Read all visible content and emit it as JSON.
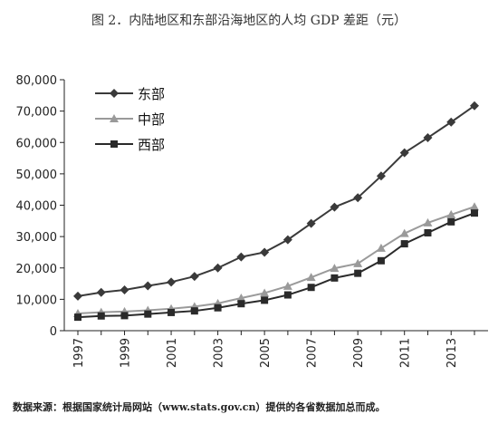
{
  "page": {
    "title": "图 2．内陆地区和东部沿海地区的人均 GDP 差距（元）",
    "source_note": "数据来源：根据国家统计局网站（www.stats.gov.cn）提供的各省数据加总而成。"
  },
  "chart_data": {
    "type": "line",
    "title": "图 2．内陆地区和东部沿海地区的人均 GDP 差距（元）",
    "xlabel": "",
    "ylabel": "",
    "x": [
      1997,
      1998,
      1999,
      2000,
      2001,
      2002,
      2003,
      2004,
      2005,
      2006,
      2007,
      2008,
      2009,
      2010,
      2011,
      2012,
      2013,
      2014
    ],
    "x_tick_labels": [
      "1997",
      "1999",
      "2001",
      "2003",
      "2005",
      "2007",
      "2009",
      "2011",
      "2013"
    ],
    "x_range": [
      1997,
      2014
    ],
    "ylim": [
      0,
      80000
    ],
    "y_tick_labels": [
      "0",
      "10,000",
      "20,000",
      "30,000",
      "40,000",
      "50,000",
      "60,000",
      "70,000",
      "80,000"
    ],
    "grid": false,
    "legend_position": "top-left",
    "series": [
      {
        "name": "东部",
        "marker": "diamond",
        "color": "#3a3a3a",
        "values": [
          11000,
          12200,
          13000,
          14300,
          15500,
          17300,
          20000,
          23500,
          25000,
          29000,
          34200,
          39400,
          42400,
          49300,
          56700,
          61500,
          66500,
          71700
        ]
      },
      {
        "name": "中部",
        "marker": "triangle",
        "color": "#9a9a9a",
        "values": [
          5500,
          5900,
          6100,
          6500,
          7000,
          7700,
          8700,
          10400,
          12000,
          14200,
          17000,
          19900,
          21400,
          26300,
          31000,
          34400,
          37000,
          39500
        ]
      },
      {
        "name": "西部",
        "marker": "square",
        "color": "#2a2a2a",
        "values": [
          4300,
          4700,
          4800,
          5300,
          5800,
          6300,
          7300,
          8600,
          9700,
          11400,
          13800,
          16800,
          18300,
          22300,
          27700,
          31200,
          34700,
          37500
        ]
      }
    ]
  }
}
